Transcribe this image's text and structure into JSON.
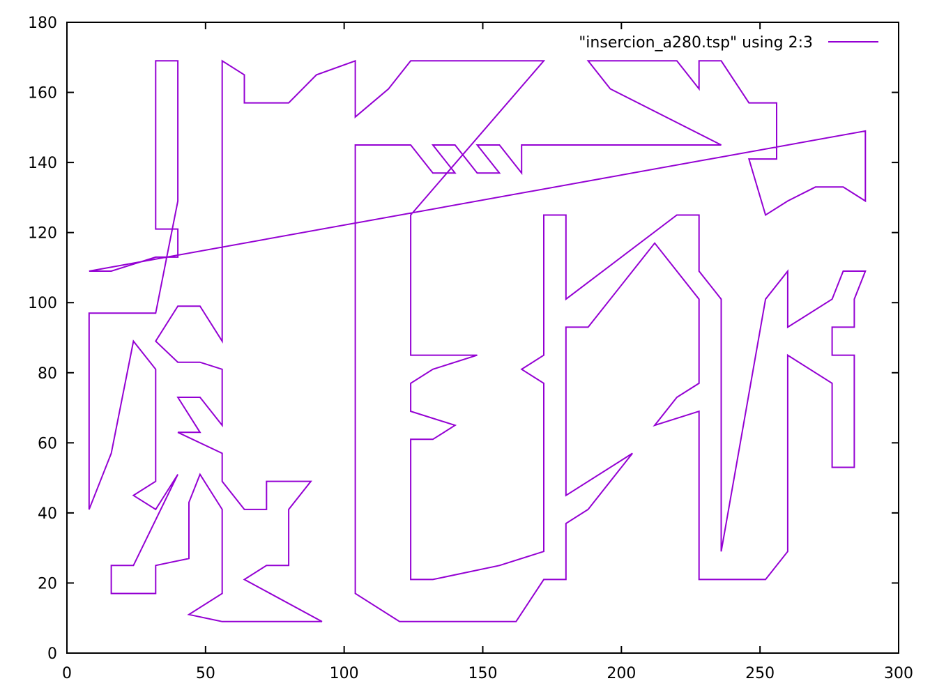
{
  "chart_data": {
    "type": "line",
    "title": "",
    "xlabel": "",
    "ylabel": "",
    "xlim": [
      0,
      300
    ],
    "ylim": [
      0,
      180
    ],
    "x_ticks": [
      0,
      50,
      100,
      150,
      200,
      250,
      300
    ],
    "y_ticks": [
      0,
      20,
      40,
      60,
      80,
      100,
      120,
      140,
      160,
      180
    ],
    "grid": false,
    "legend_position": "top-right",
    "series": [
      {
        "name": "\"insercion_a280.tsp\" using 2:3",
        "color": "#9400d3",
        "points": [
          [
            8,
            109
          ],
          [
            16,
            109
          ],
          [
            32,
            113
          ],
          [
            40,
            113
          ],
          [
            40,
            121
          ],
          [
            32,
            121
          ],
          [
            32,
            169
          ],
          [
            40,
            169
          ],
          [
            40,
            129
          ],
          [
            32,
            97
          ],
          [
            8,
            97
          ],
          [
            8,
            41
          ],
          [
            16,
            57
          ],
          [
            24,
            89
          ],
          [
            32,
            81
          ],
          [
            32,
            49
          ],
          [
            24,
            45
          ],
          [
            32,
            41
          ],
          [
            40,
            51
          ],
          [
            24,
            25
          ],
          [
            16,
            25
          ],
          [
            16,
            17
          ],
          [
            32,
            17
          ],
          [
            32,
            25
          ],
          [
            44,
            27
          ],
          [
            44,
            43
          ],
          [
            48,
            51
          ],
          [
            56,
            41
          ],
          [
            56,
            17
          ],
          [
            44,
            11
          ],
          [
            56,
            9
          ],
          [
            92,
            9
          ],
          [
            64,
            21
          ],
          [
            72,
            25
          ],
          [
            80,
            25
          ],
          [
            80,
            41
          ],
          [
            88,
            49
          ],
          [
            72,
            49
          ],
          [
            72,
            41
          ],
          [
            64,
            41
          ],
          [
            56,
            49
          ],
          [
            56,
            57
          ],
          [
            40,
            63
          ],
          [
            48,
            63
          ],
          [
            40,
            73
          ],
          [
            48,
            73
          ],
          [
            56,
            65
          ],
          [
            56,
            81
          ],
          [
            48,
            83
          ],
          [
            40,
            83
          ],
          [
            32,
            89
          ],
          [
            40,
            99
          ],
          [
            48,
            99
          ],
          [
            56,
            89
          ],
          [
            56,
            169
          ],
          [
            64,
            165
          ],
          [
            64,
            157
          ],
          [
            80,
            157
          ],
          [
            90,
            165
          ],
          [
            104,
            169
          ],
          [
            104,
            153
          ],
          [
            116,
            161
          ],
          [
            124,
            169
          ],
          [
            172,
            169
          ],
          [
            124,
            125
          ],
          [
            124,
            85
          ],
          [
            148,
            85
          ],
          [
            132,
            81
          ],
          [
            124,
            77
          ],
          [
            124,
            69
          ],
          [
            140,
            65
          ],
          [
            132,
            61
          ],
          [
            124,
            61
          ],
          [
            124,
            21
          ],
          [
            132,
            21
          ],
          [
            156,
            25
          ],
          [
            172,
            29
          ],
          [
            172,
            77
          ],
          [
            164,
            81
          ],
          [
            172,
            85
          ],
          [
            172,
            125
          ],
          [
            180,
            125
          ],
          [
            180,
            101
          ],
          [
            220,
            125
          ],
          [
            228,
            125
          ],
          [
            228,
            109
          ],
          [
            236,
            101
          ],
          [
            236,
            29
          ],
          [
            252,
            101
          ],
          [
            260,
            109
          ],
          [
            260,
            93
          ],
          [
            276,
            101
          ],
          [
            280,
            109
          ],
          [
            288,
            109
          ],
          [
            284,
            101
          ],
          [
            284,
            93
          ],
          [
            276,
            93
          ],
          [
            276,
            85
          ],
          [
            284,
            85
          ],
          [
            284,
            53
          ],
          [
            276,
            53
          ],
          [
            276,
            77
          ],
          [
            260,
            85
          ],
          [
            260,
            29
          ],
          [
            252,
            21
          ],
          [
            228,
            21
          ],
          [
            228,
            69
          ],
          [
            212,
            65
          ],
          [
            220,
            73
          ],
          [
            228,
            77
          ],
          [
            228,
            101
          ],
          [
            212,
            117
          ],
          [
            188,
            93
          ],
          [
            180,
            93
          ],
          [
            180,
            45
          ],
          [
            204,
            57
          ],
          [
            188,
            41
          ],
          [
            180,
            37
          ],
          [
            180,
            21
          ],
          [
            172,
            21
          ],
          [
            162,
            9
          ],
          [
            120,
            9
          ],
          [
            104,
            17
          ],
          [
            104,
            145
          ],
          [
            124,
            145
          ],
          [
            132,
            137
          ],
          [
            140,
            137
          ],
          [
            132,
            145
          ],
          [
            140,
            145
          ],
          [
            148,
            137
          ],
          [
            156,
            137
          ],
          [
            148,
            145
          ],
          [
            156,
            145
          ],
          [
            164,
            137
          ],
          [
            164,
            145
          ],
          [
            236,
            145
          ],
          [
            196,
            161
          ],
          [
            188,
            169
          ],
          [
            220,
            169
          ],
          [
            228,
            161
          ],
          [
            228,
            169
          ],
          [
            236,
            169
          ],
          [
            246,
            157
          ],
          [
            256,
            157
          ],
          [
            256,
            141
          ],
          [
            246,
            141
          ],
          [
            252,
            125
          ],
          [
            260,
            129
          ],
          [
            270,
            133
          ],
          [
            280,
            133
          ],
          [
            288,
            129
          ],
          [
            288,
            149
          ],
          [
            8,
            109
          ]
        ]
      }
    ]
  }
}
